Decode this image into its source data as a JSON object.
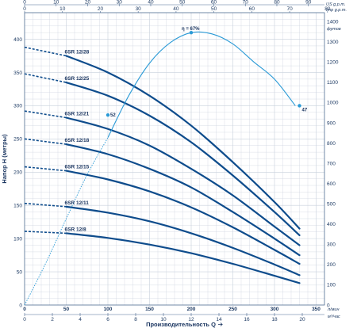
{
  "chart_data": {
    "type": "line",
    "x_axis": {
      "label": "Производительность Q",
      "unit": "л/мин",
      "ticks": [
        0,
        50,
        100,
        150,
        200,
        250,
        300,
        350
      ],
      "range": [
        0,
        360
      ]
    },
    "x_axis_m3h": {
      "unit": "м³/час",
      "ticks": [
        0,
        2,
        4,
        6,
        8,
        10,
        12,
        14,
        16,
        18,
        20
      ],
      "range": [
        0,
        21.6
      ]
    },
    "x_axis_us_gpm": {
      "unit": "US g.p.m.",
      "ticks": [
        0,
        10,
        20,
        30,
        40,
        50,
        60,
        70,
        80,
        90
      ],
      "range": [
        0,
        95.1
      ]
    },
    "x_axis_imp_gpm": {
      "unit": "Imp g.p.m.",
      "ticks": [
        0,
        10,
        20,
        30,
        40,
        50,
        60,
        70,
        80
      ],
      "range": [
        0,
        79.2
      ]
    },
    "y_axis": {
      "label": "Напор H (метры)",
      "ticks": [
        0,
        50,
        100,
        150,
        200,
        250,
        300,
        350,
        400
      ],
      "range": [
        0,
        440
      ]
    },
    "y_axis_right": {
      "unit": "футов",
      "ticks": [
        0,
        100,
        200,
        300,
        400,
        500,
        600,
        700,
        800,
        900,
        1000,
        1100,
        1200,
        1300,
        1400
      ],
      "range": [
        0,
        1443.6
      ]
    },
    "series": [
      {
        "name": "6SR 12/28",
        "x": [
          0,
          50,
          100,
          150,
          200,
          250,
          300,
          330
        ],
        "y": [
          388,
          375,
          350,
          315,
          270,
          215,
          155,
          115
        ]
      },
      {
        "name": "6SR 12/25",
        "x": [
          0,
          50,
          100,
          150,
          200,
          250,
          300,
          330
        ],
        "y": [
          348,
          335,
          315,
          285,
          245,
          195,
          140,
          105
        ]
      },
      {
        "name": "6SR 12/21",
        "x": [
          0,
          50,
          100,
          150,
          200,
          250,
          300,
          330
        ],
        "y": [
          292,
          282,
          265,
          240,
          205,
          165,
          118,
          90
        ]
      },
      {
        "name": "6SR 12/18",
        "x": [
          0,
          50,
          100,
          150,
          200,
          250,
          300,
          330
        ],
        "y": [
          250,
          242,
          227,
          205,
          177,
          140,
          100,
          75
        ]
      },
      {
        "name": "6SR 12/15",
        "x": [
          0,
          50,
          100,
          150,
          200,
          250,
          300,
          330
        ],
        "y": [
          208,
          202,
          189,
          171,
          147,
          117,
          83,
          62
        ]
      },
      {
        "name": "6SR 12/11",
        "x": [
          0,
          50,
          100,
          150,
          200,
          250,
          300,
          330
        ],
        "y": [
          153,
          148,
          139,
          126,
          108,
          86,
          61,
          45
        ]
      },
      {
        "name": "6SR 12/8",
        "x": [
          0,
          50,
          100,
          150,
          200,
          250,
          300,
          330
        ],
        "y": [
          111,
          108,
          101,
          91,
          78,
          62,
          44,
          33
        ]
      }
    ],
    "efficiency_curve": {
      "label": "η = 67%",
      "x": [
        0,
        25,
        50,
        75,
        100,
        125,
        150,
        175,
        200,
        225,
        250,
        275,
        300,
        325
      ],
      "y": [
        0,
        62,
        130,
        196,
        252,
        315,
        364,
        395,
        410,
        408,
        393,
        366,
        340,
        300
      ],
      "markers": [
        {
          "x": 100,
          "y": 286,
          "label": "52"
        },
        {
          "x": 200,
          "y": 410,
          "label": ""
        },
        {
          "x": 330,
          "y": 300,
          "label": "47"
        }
      ]
    },
    "colors": {
      "pump_curves": "#0e4c8c",
      "efficiency": "#2a9ad6",
      "grid": "#c8d0dc",
      "text": "#1d3a63"
    },
    "grid": true
  }
}
